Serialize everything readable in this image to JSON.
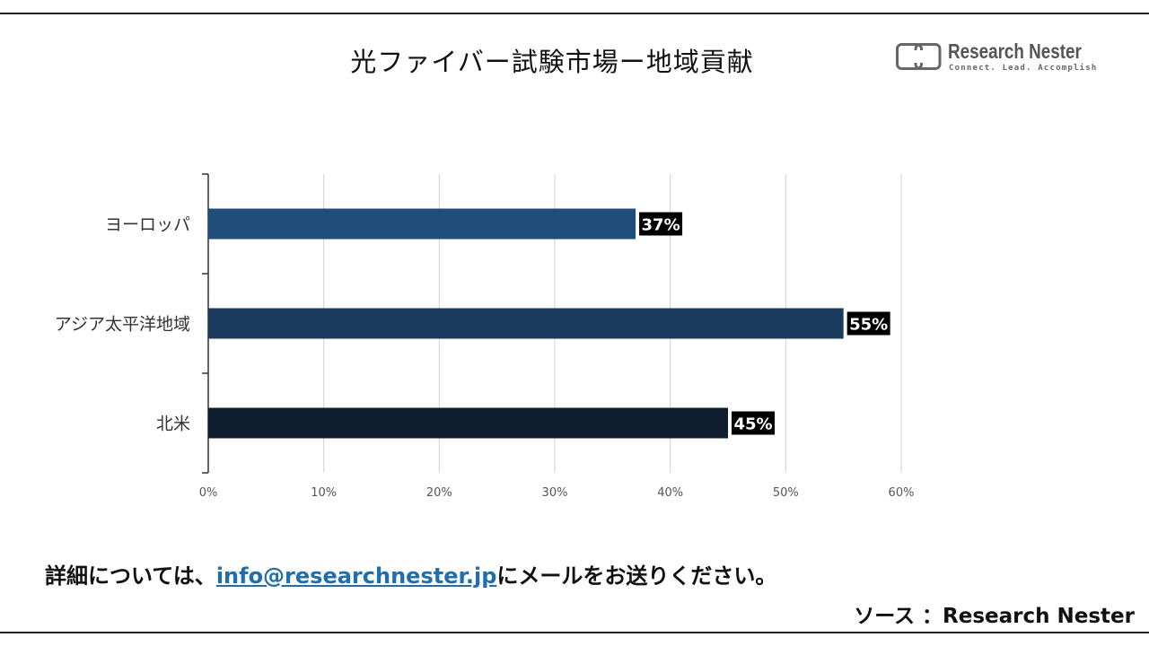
{
  "title": "光ファイバー試験市場ー地域貢献",
  "logo": {
    "name": "Research Nester",
    "tagline": "Connect. Lead. Accomplish"
  },
  "chart_data": {
    "type": "bar",
    "orientation": "horizontal",
    "categories": [
      "ヨーロッパ",
      "アジア太平洋地域",
      "北米"
    ],
    "values": [
      37,
      55,
      45
    ],
    "value_labels": [
      "37%",
      "55%",
      "45%"
    ],
    "bar_colors": [
      "#1f4e7a",
      "#1a3a5e",
      "#0f1e2e"
    ],
    "xlim": [
      0,
      60
    ],
    "xticks": [
      "0%",
      "10%",
      "20%",
      "30%",
      "40%",
      "50%",
      "60%"
    ],
    "grid": true,
    "legend": "none"
  },
  "footer": {
    "prefix": "詳細については、",
    "email": "info@researchnester.jp",
    "suffix": "にメールをお送りください。"
  },
  "source": "ソース ：Research Nester"
}
